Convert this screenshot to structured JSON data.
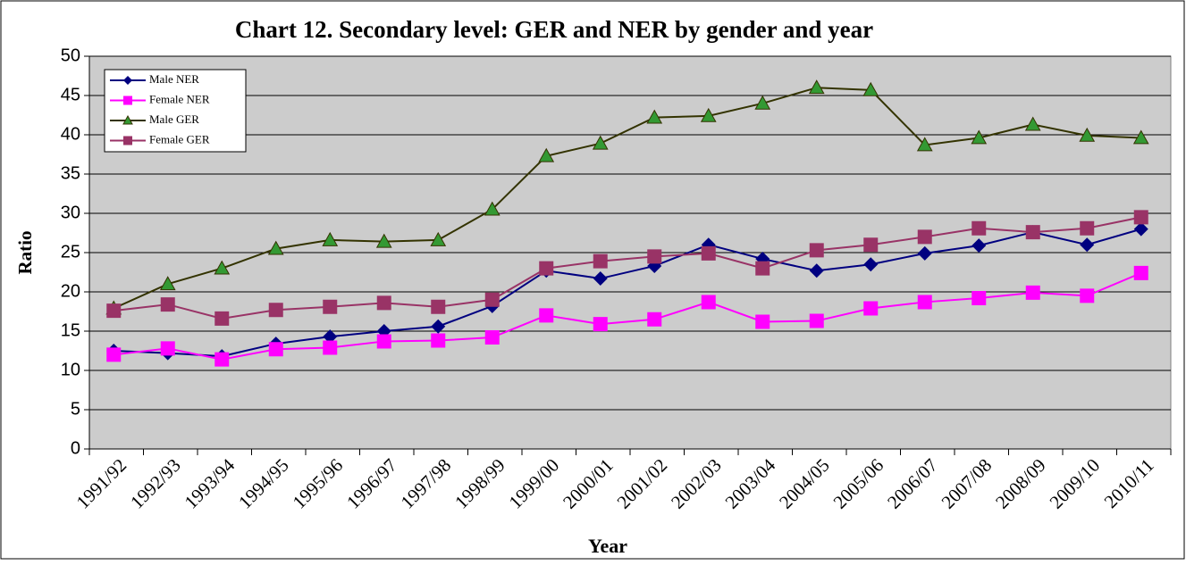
{
  "chart_data": {
    "type": "line",
    "title": "Chart 12. Secondary level: GER and NER by gender and  year",
    "x_label": "Year",
    "y_label": "Ratio",
    "categories": [
      "1991/92",
      "1992/93",
      "1993/94",
      "1994/95",
      "1995/96",
      "1996/97",
      "1997/98",
      "1998/99",
      "1999/00",
      "2000/01",
      "2001/02",
      "2002/03",
      "2003/04",
      "2004/05",
      "2005/06",
      "2006/07",
      "2007/08",
      "2008/09",
      "2009/10",
      "2010/11"
    ],
    "series": [
      {
        "name": "Male NER",
        "color": "#000080",
        "marker": "diamond",
        "marker_color": "#000080",
        "values": [
          12.5,
          12.2,
          11.8,
          13.4,
          14.3,
          15.0,
          15.6,
          18.2,
          22.7,
          21.7,
          23.3,
          26.0,
          24.2,
          22.7,
          23.5,
          24.9,
          25.9,
          27.6,
          26.0,
          28.0
        ]
      },
      {
        "name": "Female NER",
        "color": "#ff00ff",
        "marker": "square",
        "marker_color": "#ff00ff",
        "values": [
          12.0,
          12.8,
          11.4,
          12.7,
          12.9,
          13.7,
          13.8,
          14.2,
          17.0,
          15.9,
          16.5,
          18.7,
          16.2,
          16.3,
          17.9,
          18.7,
          19.2,
          19.9,
          19.5,
          22.4
        ]
      },
      {
        "name": "Male GER",
        "color": "#333300",
        "marker": "triangle",
        "marker_color": "#339933",
        "values": [
          17.9,
          21.0,
          23.0,
          25.5,
          26.6,
          26.4,
          26.6,
          30.5,
          37.3,
          38.9,
          42.2,
          42.4,
          44.0,
          46.0,
          45.7,
          38.7,
          39.6,
          41.3,
          39.9,
          39.6
        ]
      },
      {
        "name": "Female GER",
        "color": "#993366",
        "marker": "square",
        "marker_color": "#993366",
        "values": [
          17.6,
          18.4,
          16.6,
          17.7,
          18.1,
          18.6,
          18.1,
          19.0,
          23.0,
          23.9,
          24.5,
          24.9,
          23.0,
          25.3,
          26.0,
          27.0,
          28.1,
          27.6,
          28.1,
          29.5
        ]
      }
    ],
    "ylim": [
      0,
      50
    ],
    "yticks": [
      0,
      5,
      10,
      15,
      20,
      25,
      30,
      35,
      40,
      45,
      50
    ],
    "grid": true,
    "legend": "upper left"
  }
}
